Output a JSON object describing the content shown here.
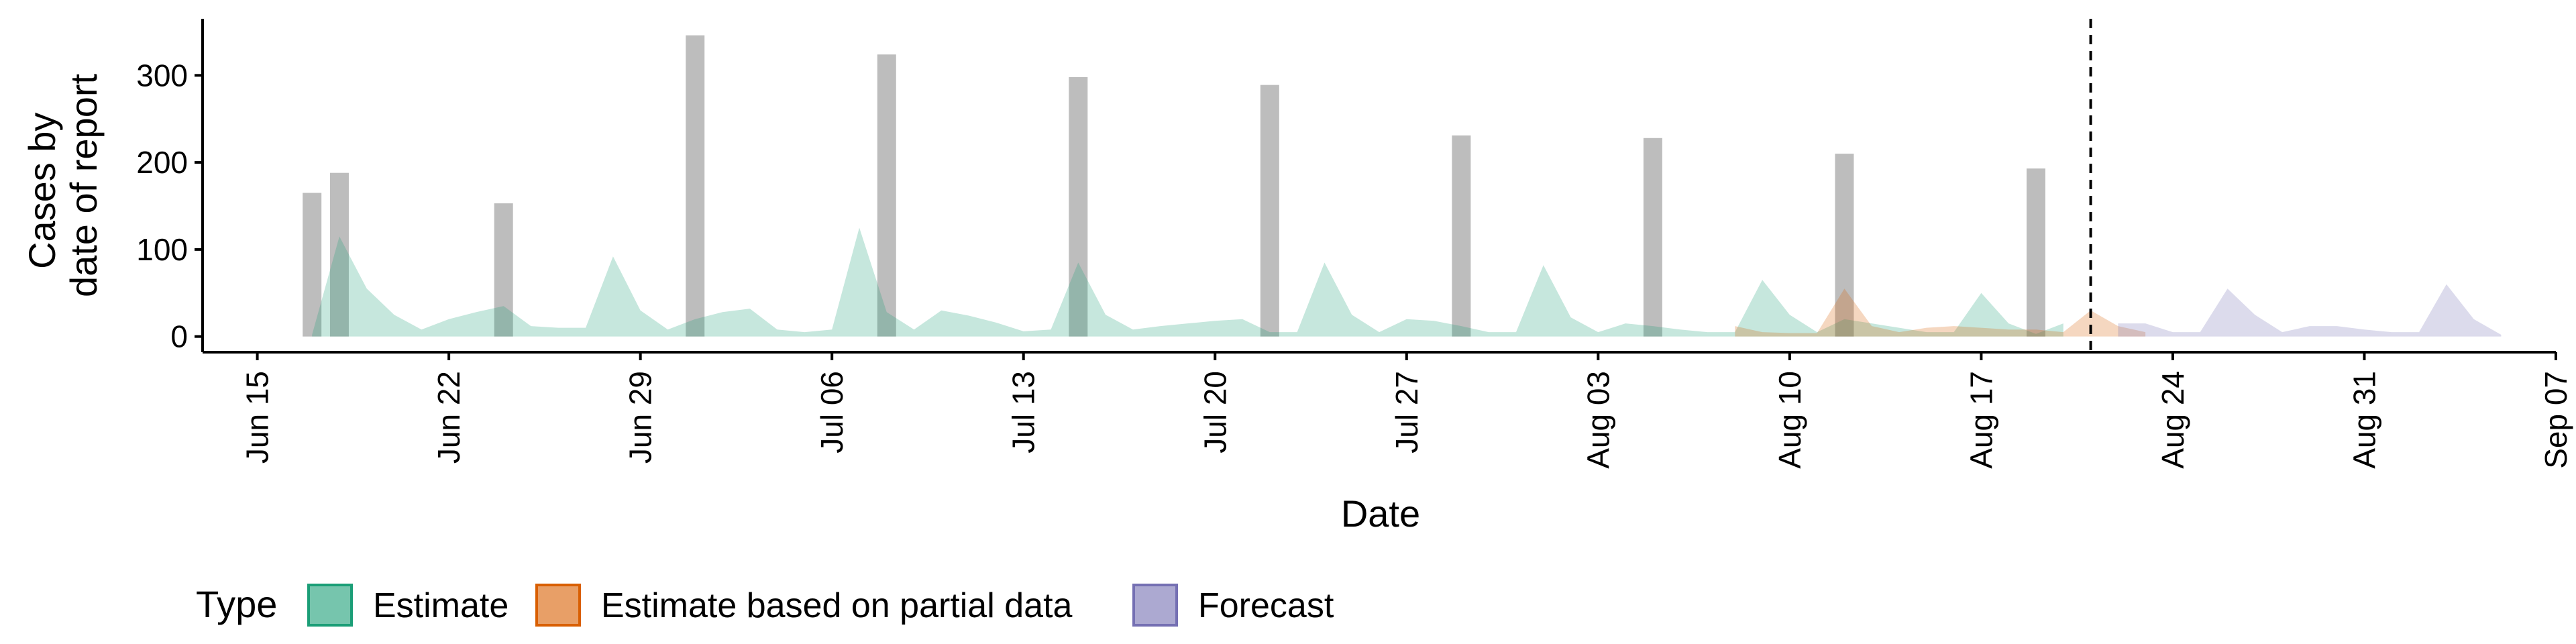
{
  "chart_data": {
    "type": "area",
    "xlabel": "Date",
    "ylabel": [
      "Cases by",
      "date of report"
    ],
    "x_ticks": [
      "2020-06-15",
      "2020-06-22",
      "2020-06-29",
      "2020-07-06",
      "2020-07-13",
      "2020-07-20",
      "2020-07-27",
      "2020-08-03",
      "2020-08-10",
      "2020-08-17",
      "2020-08-24",
      "2020-08-31",
      "2020-09-07"
    ],
    "x_tick_labels": [
      "Jun 15",
      "Jun 22",
      "Jun 29",
      "Jul 06",
      "Jul 13",
      "Jul 20",
      "Jul 27",
      "Aug 03",
      "Aug 10",
      "Aug 17",
      "Aug 24",
      "Aug 31",
      "Sep 07"
    ],
    "xlim": [
      "2020-06-13",
      "2020-09-07"
    ],
    "y_ticks": [
      0,
      100,
      200,
      300
    ],
    "ylim": [
      -18,
      365
    ],
    "forecast_date": "2020-08-21",
    "reported_cases": {
      "dates": [
        "2020-06-17",
        "2020-06-18",
        "2020-06-24",
        "2020-07-01",
        "2020-07-08",
        "2020-07-15",
        "2020-07-22",
        "2020-07-29",
        "2020-08-05",
        "2020-08-12",
        "2020-08-19"
      ],
      "values": [
        165,
        188,
        153,
        346,
        324,
        298,
        289,
        231,
        228,
        210,
        193
      ]
    },
    "series": [
      {
        "name": "Estimate",
        "color": "#1B9E77",
        "start": "2020-06-17",
        "values": [
          2,
          115,
          55,
          25,
          8,
          20,
          28,
          35,
          12,
          10,
          10,
          92,
          30,
          8,
          20,
          28,
          32,
          8,
          5,
          8,
          125,
          28,
          8,
          30,
          24,
          16,
          6,
          8,
          85,
          25,
          8,
          12,
          15,
          18,
          20,
          5,
          5,
          85,
          25,
          5,
          20,
          18,
          12,
          5,
          5,
          82,
          22,
          5,
          15,
          12,
          8,
          5,
          5,
          65,
          25,
          5,
          20,
          15,
          10,
          5,
          5,
          50,
          15,
          3,
          15
        ]
      },
      {
        "name": "Estimate based on partial data",
        "color": "#D95F02",
        "start": "2020-08-08",
        "values": [
          12,
          5,
          4,
          4,
          55,
          12,
          5,
          10,
          12,
          10,
          8,
          8,
          5,
          30,
          12,
          5
        ]
      },
      {
        "name": "Forecast",
        "color": "#7570B3",
        "start": "2020-08-22",
        "values": [
          15,
          15,
          5,
          5,
          55,
          25,
          5,
          12,
          12,
          8,
          5,
          5,
          60,
          20,
          2
        ]
      }
    ],
    "legend": {
      "title": "Type",
      "position": "bottom",
      "entries": [
        "Estimate",
        "Estimate based on partial data",
        "Forecast"
      ]
    },
    "grid": false
  }
}
